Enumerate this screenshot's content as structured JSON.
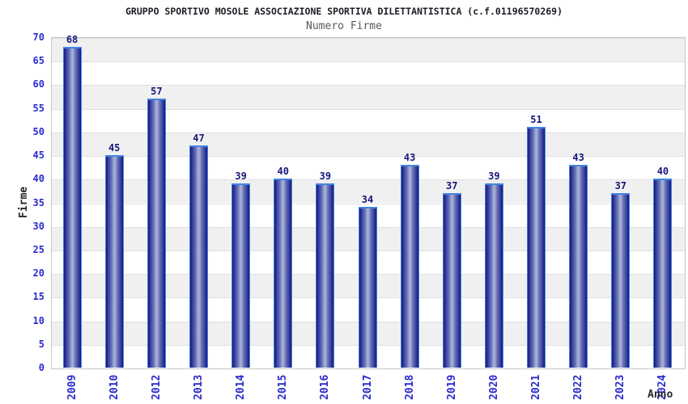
{
  "chart_data": {
    "type": "bar",
    "title": "GRUPPO SPORTIVO MOSOLE ASSOCIAZIONE SPORTIVA DILETTANTISTICA (c.f.01196570269)",
    "subtitle": "Numero Firme",
    "xlabel": "Anno",
    "ylabel": "Firme",
    "categories": [
      "2009",
      "2010",
      "2012",
      "2013",
      "2014",
      "2015",
      "2016",
      "2017",
      "2018",
      "2019",
      "2020",
      "2021",
      "2022",
      "2023",
      "2024"
    ],
    "values": [
      68,
      45,
      57,
      47,
      39,
      40,
      39,
      34,
      43,
      37,
      39,
      51,
      43,
      37,
      40
    ],
    "ylim": [
      0,
      70
    ],
    "ytick_step": 5,
    "yticks": [
      0,
      5,
      10,
      15,
      20,
      25,
      30,
      35,
      40,
      45,
      50,
      55,
      60,
      65,
      70
    ],
    "grid": true,
    "band_fill": "alternating-horizontal",
    "legend": "none",
    "bar_label_position": "above"
  },
  "colors": {
    "tick_label_blue": "#2a2acc",
    "value_label_navy": "#17177e",
    "title_color": "#1c1c24",
    "subtitle_color": "#5a5a5a",
    "bar_edge_dark": "#16167e",
    "bar_mid": "#3c46a2",
    "bar_center_light": "#a6aed8",
    "bar_border_blue": "#4285e0",
    "band_gray": "#f0f0f0",
    "band_white": "#ffffff",
    "grid_line": "#e0e0e0",
    "plot_border": "#c6c6c6",
    "background": "#ffffff"
  }
}
